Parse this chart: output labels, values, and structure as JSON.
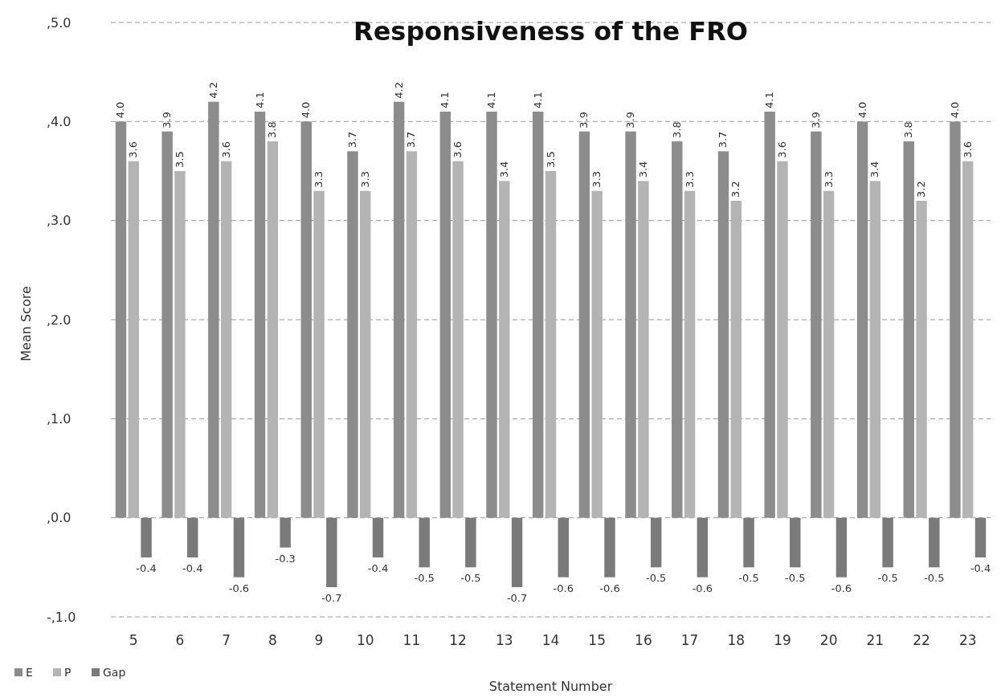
{
  "chart_data": {
    "type": "bar",
    "title": "Responsiveness of the FRO",
    "xlabel": "Statement Number",
    "ylabel": "Mean Score",
    "categories": [
      "5",
      "6",
      "7",
      "8",
      "9",
      "10",
      "11",
      "12",
      "13",
      "14",
      "15",
      "16",
      "17",
      "18",
      "19",
      "20",
      "21",
      "22",
      "23"
    ],
    "series": [
      {
        "name": "E",
        "color": "#8c8c8c",
        "values": [
          4.0,
          3.9,
          4.2,
          4.1,
          4.0,
          3.7,
          4.2,
          4.1,
          4.1,
          4.1,
          3.9,
          3.9,
          3.8,
          3.7,
          4.1,
          3.9,
          4.0,
          3.8,
          4.0
        ],
        "value_labels": [
          "4.0",
          "3.9",
          "4.2",
          "4.1",
          "4.0",
          "3.7",
          "4.2",
          "4.1",
          "4.1",
          "4.1",
          "3.9",
          "3.9",
          "3.8",
          "3.7",
          "4.1",
          "3.9",
          "4.0",
          "3.8",
          "4.0"
        ]
      },
      {
        "name": "P",
        "color": "#b4b4b4",
        "values": [
          3.6,
          3.5,
          3.6,
          3.8,
          3.3,
          3.3,
          3.7,
          3.6,
          3.4,
          3.5,
          3.3,
          3.4,
          3.3,
          3.2,
          3.6,
          3.3,
          3.4,
          3.2,
          3.6
        ],
        "value_labels": [
          "3.6",
          "3.5",
          "3.6",
          "3.8",
          "3.3",
          "3.3",
          "3.7",
          "3.6",
          "3.4",
          "3.5",
          "3.3",
          "3.4",
          "3.3",
          "3.2",
          "3.6",
          "3.3",
          "3.4",
          "3.2",
          "3.6"
        ]
      },
      {
        "name": "Gap",
        "color": "#7a7a7a",
        "values": [
          -0.4,
          -0.4,
          -0.6,
          -0.3,
          -0.7,
          -0.4,
          -0.5,
          -0.5,
          -0.7,
          -0.6,
          -0.6,
          -0.5,
          -0.6,
          -0.5,
          -0.5,
          -0.6,
          -0.5,
          -0.5,
          -0.4
        ],
        "value_labels": [
          "-0.4",
          "-0.4",
          "-0.6",
          "-0.3",
          "-0.7",
          "-0.4",
          "-0.5",
          "-0.5",
          "-0.7",
          "-0.6",
          "-0.6",
          "-0.5",
          "-0.6",
          "-0.5",
          "-0.5",
          "-0.6",
          "-0.5",
          "-0.5",
          "-0.4"
        ]
      }
    ],
    "ylim": [
      -1,
      5
    ],
    "yticks": [
      {
        "value": -1,
        "label": "-,1.0"
      },
      {
        "value": 0,
        "label": ",0.0"
      },
      {
        "value": 1,
        "label": ",1.0"
      },
      {
        "value": 2,
        "label": ",2.0"
      },
      {
        "value": 3,
        "label": ",3.0"
      },
      {
        "value": 4,
        "label": ",4.0"
      },
      {
        "value": 5,
        "label": ",5.0"
      }
    ],
    "grid": "y",
    "legend": "bottom left"
  }
}
